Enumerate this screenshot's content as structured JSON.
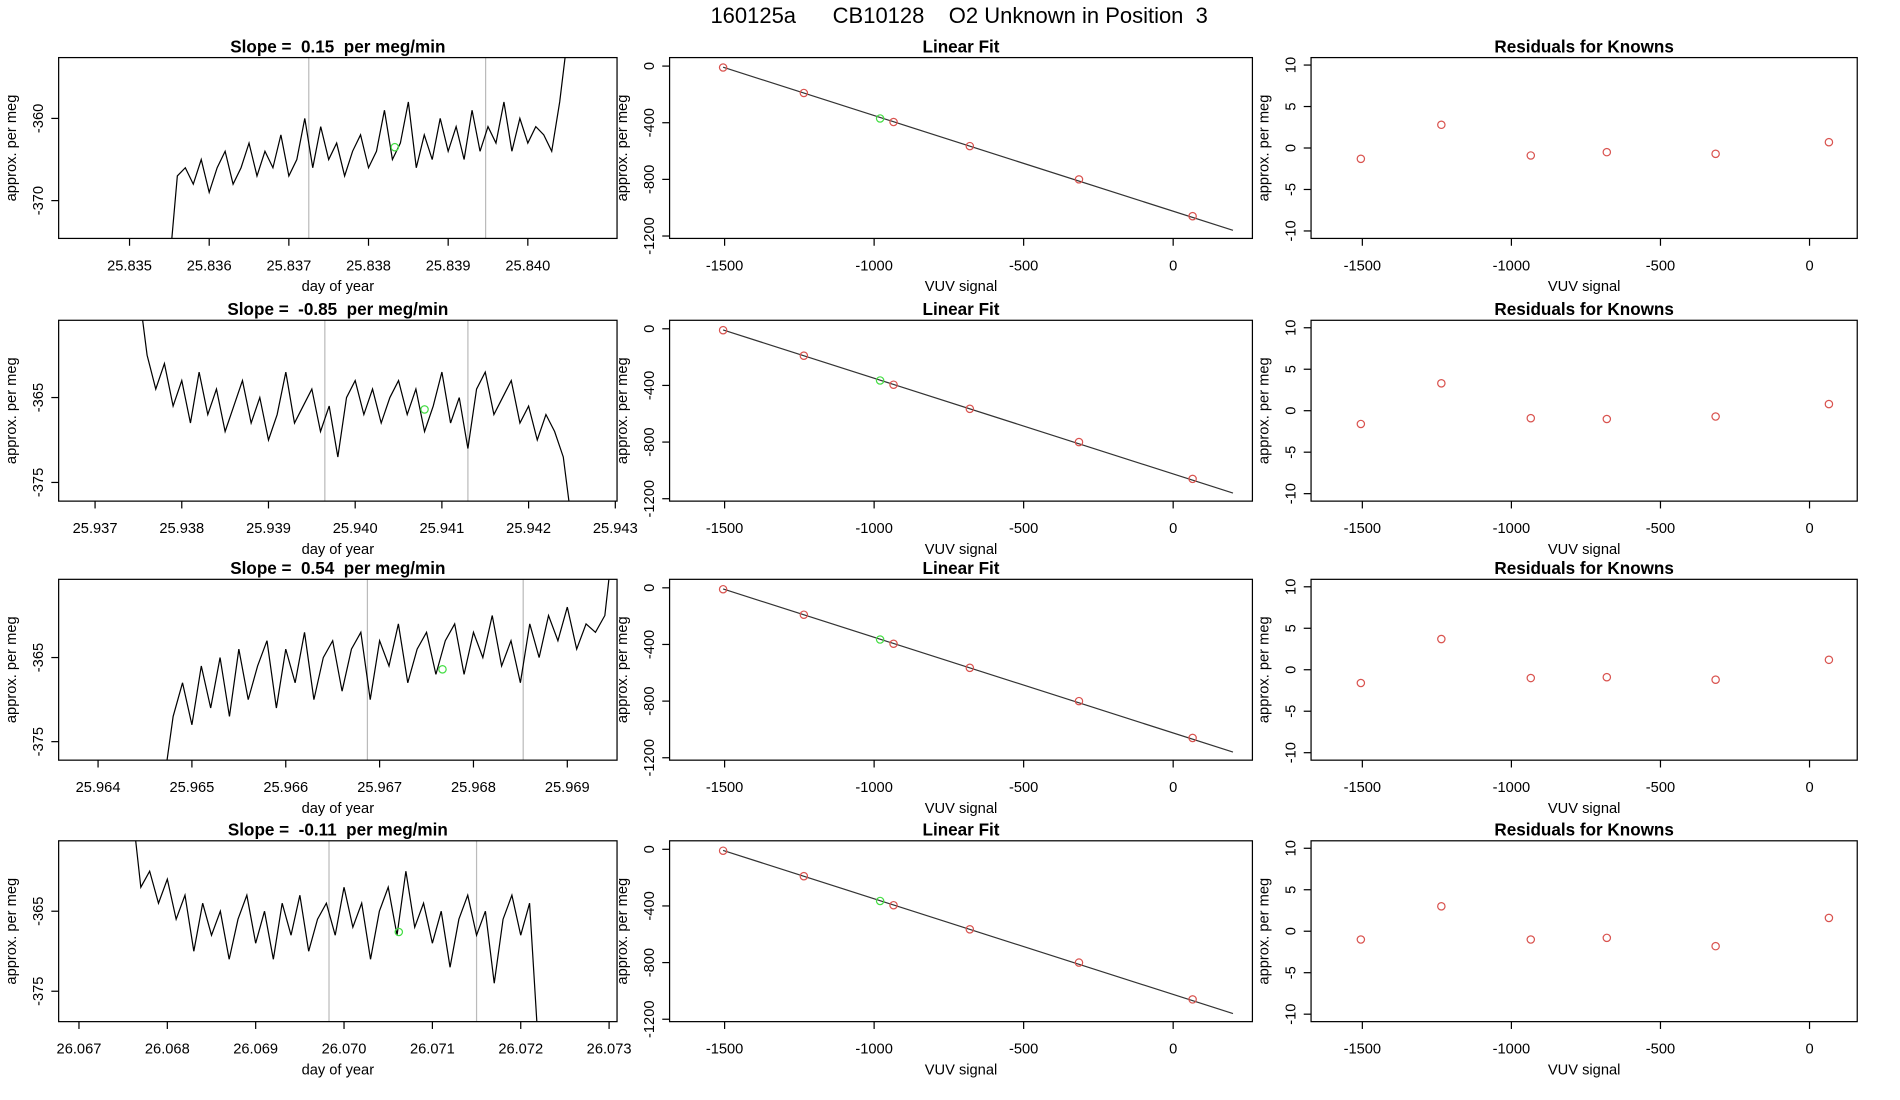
{
  "title": "160125a      CB10128    O2 Unknown in Position  3",
  "chart_data": [
    {
      "type": "line",
      "title": "Slope =  0.15  per meg/min",
      "xlabel": "day of year",
      "ylabel": "approx. per meg",
      "x": [
        25.8355,
        25.8356,
        25.8357,
        25.8358,
        25.8359,
        25.836,
        25.8361,
        25.8362,
        25.8363,
        25.8364,
        25.8365,
        25.8366,
        25.8367,
        25.8368,
        25.8369,
        25.837,
        25.8371,
        25.8372,
        25.8373,
        25.8374,
        25.8375,
        25.8376,
        25.8377,
        25.8378,
        25.8379,
        25.838,
        25.8381,
        25.8382,
        25.8383,
        25.8384,
        25.8385,
        25.8386,
        25.8387,
        25.8388,
        25.8389,
        25.839,
        25.8391,
        25.8392,
        25.8393,
        25.8394,
        25.8395,
        25.8396,
        25.8397,
        25.8398,
        25.8399,
        25.84,
        25.8401,
        25.8402,
        25.8403,
        25.8404,
        25.8405
      ],
      "values": [
        -378,
        -367,
        -366,
        -368,
        -365,
        -369,
        -366,
        -364,
        -368,
        -366,
        -363,
        -367,
        -364,
        -366,
        -362,
        -367,
        -365,
        -360,
        -366,
        -361,
        -365,
        -363,
        -367,
        -364,
        -362,
        -366,
        -364,
        -359,
        -365,
        -363,
        -358,
        -366,
        -362,
        -365,
        -360,
        -364,
        -361,
        -365,
        -359,
        -364,
        -361,
        -363,
        -358,
        -364,
        -360,
        -363,
        -361,
        -362,
        -364,
        -358,
        -350
      ],
      "color": "#000000",
      "vlines": [
        25.83725,
        25.83947
      ],
      "vline_color": "#bbbbbb",
      "highlight": {
        "x": 25.83833,
        "y": -363.5,
        "color": "#44dd44"
      },
      "xlim": [
        25.83411,
        25.84112
      ],
      "ylim": [
        -374.6,
        -352.6
      ],
      "xticks": [
        25.835,
        25.836,
        25.837,
        25.838,
        25.839,
        {
          "value": 25.84,
          "label": "25.840"
        }
      ],
      "yticks": [
        -360,
        -370
      ]
    },
    {
      "type": "scatter",
      "title": "Linear Fit",
      "xlabel": "VUV signal",
      "ylabel": "approx. per meg",
      "x": [
        -1505,
        -1235,
        -935,
        -680,
        -315,
        65
      ],
      "values": [
        -10,
        -190,
        -395,
        -565,
        -800,
        -1060
      ],
      "color": "#d9534f",
      "highlight": {
        "x": -980,
        "y": -370,
        "color": "#44dd44"
      },
      "fit": {
        "x": [
          -1505,
          200
        ],
        "y": [
          -8,
          -1160
        ]
      },
      "xlim": [
        -1684,
        265
      ],
      "ylim": [
        -1217,
        60
      ],
      "xticks": [
        -1500,
        -1000,
        -500,
        0
      ],
      "yticks": [
        0,
        -400,
        -800,
        -1200
      ]
    },
    {
      "type": "scatter",
      "title": "Residuals for Knowns",
      "xlabel": "VUV signal",
      "ylabel": "approx. per meg",
      "x": [
        -1505,
        -1235,
        -935,
        -680,
        -315,
        65
      ],
      "values": [
        -1.3,
        2.8,
        -0.9,
        -0.5,
        -0.7,
        0.7
      ],
      "color": "#d9534f",
      "xlim": [
        -1672,
        160
      ],
      "ylim": [
        -10.9,
        10.9
      ],
      "xticks": [
        -1500,
        -1000,
        -500,
        0
      ],
      "yticks": [
        -10,
        -5,
        0,
        5,
        10
      ]
    },
    {
      "type": "line",
      "title": "Slope =  -0.85  per meg/min",
      "xlabel": "day of year",
      "ylabel": "approx. per meg",
      "x": [
        25.9375,
        25.9376,
        25.9377,
        25.9378,
        25.9379,
        25.938,
        25.9381,
        25.9382,
        25.9383,
        25.9384,
        25.9385,
        25.9386,
        25.9387,
        25.9388,
        25.9389,
        25.939,
        25.9391,
        25.9392,
        25.9393,
        25.9394,
        25.9395,
        25.9396,
        25.9397,
        25.9398,
        25.9399,
        25.94,
        25.9401,
        25.9402,
        25.9403,
        25.9404,
        25.9405,
        25.9406,
        25.9407,
        25.9408,
        25.9409,
        25.941,
        25.9411,
        25.9412,
        25.9413,
        25.9414,
        25.9415,
        25.9416,
        25.9417,
        25.9418,
        25.9419,
        25.942,
        25.9421,
        25.9422,
        25.9423,
        25.9424,
        25.9425
      ],
      "values": [
        -352,
        -360,
        -364,
        -361,
        -366,
        -363,
        -368,
        -362,
        -367,
        -364,
        -369,
        -366,
        -363,
        -368,
        -365,
        -370,
        -367,
        -362,
        -368,
        -366,
        -364,
        -369,
        -366,
        -372,
        -365,
        -363,
        -367,
        -364,
        -368,
        -365,
        -363,
        -367,
        -364,
        -369,
        -366,
        -362,
        -368,
        -365,
        -371,
        -364,
        -362,
        -367,
        -365,
        -363,
        -368,
        -366,
        -370,
        -367,
        -369,
        -372,
        -380
      ],
      "color": "#000000",
      "vlines": [
        25.93965,
        25.9413
      ],
      "vline_color": "#bbbbbb",
      "highlight": {
        "x": 25.9408,
        "y": -366.4,
        "color": "#44dd44"
      },
      "xlim": [
        25.93658,
        25.94302
      ],
      "ylim": [
        -377.2,
        -355.9
      ],
      "xticks": [
        25.937,
        25.938,
        25.939,
        {
          "value": 25.94,
          "label": "25.940"
        },
        25.941,
        25.942,
        25.943
      ],
      "yticks": [
        -365,
        -375
      ]
    },
    {
      "type": "scatter",
      "title": "Linear Fit",
      "xlabel": "VUV signal",
      "ylabel": "approx. per meg",
      "x": [
        -1505,
        -1235,
        -935,
        -680,
        -315,
        65
      ],
      "values": [
        -10,
        -190,
        -395,
        -565,
        -800,
        -1060
      ],
      "color": "#d9534f",
      "highlight": {
        "x": -980,
        "y": -365,
        "color": "#44dd44"
      },
      "fit": {
        "x": [
          -1505,
          200
        ],
        "y": [
          -8,
          -1160
        ]
      },
      "xlim": [
        -1684,
        265
      ],
      "ylim": [
        -1217,
        60
      ],
      "xticks": [
        -1500,
        -1000,
        -500,
        0
      ],
      "yticks": [
        0,
        -400,
        -800,
        -1200
      ]
    },
    {
      "type": "scatter",
      "title": "Residuals for Knowns",
      "xlabel": "VUV signal",
      "ylabel": "approx. per meg",
      "x": [
        -1505,
        -1235,
        -935,
        -680,
        -315,
        65
      ],
      "values": [
        -1.6,
        3.3,
        -0.9,
        -1.0,
        -0.7,
        0.8
      ],
      "color": "#d9534f",
      "xlim": [
        -1672,
        160
      ],
      "ylim": [
        -10.9,
        10.9
      ],
      "xticks": [
        -1500,
        -1000,
        -500,
        0
      ],
      "yticks": [
        -10,
        -5,
        0,
        5,
        10
      ]
    },
    {
      "type": "line",
      "title": "Slope =  0.54  per meg/min",
      "xlabel": "day of year",
      "ylabel": "approx. per meg",
      "x": [
        25.9647,
        25.9648,
        25.9649,
        25.965,
        25.9651,
        25.9652,
        25.9653,
        25.9654,
        25.9655,
        25.9656,
        25.9657,
        25.9658,
        25.9659,
        25.966,
        25.9661,
        25.9662,
        25.9663,
        25.9664,
        25.9665,
        25.9666,
        25.9667,
        25.9668,
        25.9669,
        25.967,
        25.9671,
        25.9672,
        25.9673,
        25.9674,
        25.9675,
        25.9676,
        25.9677,
        25.9678,
        25.9679,
        25.968,
        25.9681,
        25.9682,
        25.9683,
        25.9684,
        25.9685,
        25.9686,
        25.9687,
        25.9688,
        25.9689,
        25.969,
        25.9691,
        25.9692,
        25.9693,
        25.9694,
        25.9695
      ],
      "values": [
        -380,
        -372,
        -368,
        -373,
        -366,
        -371,
        -365,
        -372,
        -364,
        -370,
        -366,
        -363,
        -371,
        -364,
        -368,
        -362,
        -370,
        -365,
        -363,
        -369,
        -364,
        -362,
        -370,
        -363,
        -366,
        -361,
        -368,
        -364,
        -362,
        -367,
        -363,
        -361,
        -367,
        -362,
        -365,
        -360,
        -366,
        -363,
        -368,
        -361,
        -365,
        -360,
        -363,
        -359,
        -364,
        -361,
        -362,
        -360,
        -350
      ],
      "color": "#000000",
      "vlines": [
        25.96687,
        25.96853
      ],
      "vline_color": "#bbbbbb",
      "highlight": {
        "x": 25.96767,
        "y": -366.4,
        "color": "#44dd44"
      },
      "xlim": [
        25.96358,
        25.96953
      ],
      "ylim": [
        -377.2,
        -355.7
      ],
      "xticks": [
        25.964,
        25.965,
        25.966,
        25.967,
        25.968,
        25.969
      ],
      "yticks": [
        -365,
        -375
      ]
    },
    {
      "type": "scatter",
      "title": "Linear Fit",
      "xlabel": "VUV signal",
      "ylabel": "approx. per meg",
      "x": [
        -1505,
        -1235,
        -935,
        -680,
        -315,
        65
      ],
      "values": [
        -10,
        -190,
        -395,
        -565,
        -800,
        -1060
      ],
      "color": "#d9534f",
      "highlight": {
        "x": -980,
        "y": -365,
        "color": "#44dd44"
      },
      "fit": {
        "x": [
          -1505,
          200
        ],
        "y": [
          -8,
          -1160
        ]
      },
      "xlim": [
        -1684,
        265
      ],
      "ylim": [
        -1217,
        60
      ],
      "xticks": [
        -1500,
        -1000,
        -500,
        0
      ],
      "yticks": [
        0,
        -400,
        -800,
        -1200
      ]
    },
    {
      "type": "scatter",
      "title": "Residuals for Knowns",
      "xlabel": "VUV signal",
      "ylabel": "approx. per meg",
      "x": [
        -1505,
        -1235,
        -935,
        -680,
        -315,
        65
      ],
      "values": [
        -1.6,
        3.7,
        -1.0,
        -0.9,
        -1.2,
        1.2
      ],
      "color": "#d9534f",
      "xlim": [
        -1672,
        160
      ],
      "ylim": [
        -10.9,
        10.9
      ],
      "xticks": [
        -1500,
        -1000,
        -500,
        0
      ],
      "yticks": [
        -10,
        -5,
        0,
        5,
        10
      ]
    },
    {
      "type": "line",
      "title": "Slope =  -0.11  per meg/min",
      "xlabel": "day of year",
      "ylabel": "approx. per meg",
      "x": [
        26.0676,
        26.0677,
        26.0678,
        26.0679,
        26.068,
        26.0681,
        26.0682,
        26.0683,
        26.0684,
        26.0685,
        26.0686,
        26.0687,
        26.0688,
        26.0689,
        26.069,
        26.0691,
        26.0692,
        26.0693,
        26.0694,
        26.0695,
        26.0696,
        26.0697,
        26.0698,
        26.0699,
        26.07,
        26.0701,
        26.0702,
        26.0703,
        26.0704,
        26.0705,
        26.0706,
        26.0707,
        26.0708,
        26.0709,
        26.071,
        26.0711,
        26.0712,
        26.0713,
        26.0714,
        26.0715,
        26.0716,
        26.0717,
        26.0718,
        26.0719,
        26.072,
        26.0721,
        26.0722
      ],
      "values": [
        -352,
        -362,
        -360,
        -364,
        -361,
        -366,
        -363,
        -370,
        -364,
        -368,
        -365,
        -371,
        -366,
        -363,
        -369,
        -365,
        -371,
        -364,
        -368,
        -363,
        -370,
        -366,
        -364,
        -368,
        -362,
        -367,
        -364,
        -371,
        -365,
        -362,
        -368,
        -360,
        -367,
        -364,
        -369,
        -365,
        -372,
        -366,
        -363,
        -368,
        -365,
        -374,
        -366,
        -363,
        -368,
        -364,
        -382
      ],
      "color": "#000000",
      "vlines": [
        26.06983,
        26.0715
      ],
      "vline_color": "#bbbbbb",
      "highlight": {
        "x": 26.07062,
        "y": -367.6,
        "color": "#44dd44"
      },
      "xlim": [
        26.06677,
        26.07309
      ],
      "ylim": [
        -378.8,
        -356.2
      ],
      "xticks": [
        26.067,
        26.068,
        26.069,
        {
          "value": 26.07,
          "label": "26.070"
        },
        26.071,
        26.072,
        26.073
      ],
      "yticks": [
        -365,
        -375
      ]
    },
    {
      "type": "scatter",
      "title": "Linear Fit",
      "xlabel": "VUV signal",
      "ylabel": "approx. per meg",
      "x": [
        -1505,
        -1235,
        -935,
        -680,
        -315,
        65
      ],
      "values": [
        -10,
        -190,
        -395,
        -565,
        -800,
        -1060
      ],
      "color": "#d9534f",
      "highlight": {
        "x": -980,
        "y": -365,
        "color": "#44dd44"
      },
      "fit": {
        "x": [
          -1505,
          200
        ],
        "y": [
          -8,
          -1160
        ]
      },
      "xlim": [
        -1684,
        265
      ],
      "ylim": [
        -1217,
        60
      ],
      "xticks": [
        -1500,
        -1000,
        -500,
        0
      ],
      "yticks": [
        0,
        -400,
        -800,
        -1200
      ]
    },
    {
      "type": "scatter",
      "title": "Residuals for Knowns",
      "xlabel": "VUV signal",
      "ylabel": "approx. per meg",
      "x": [
        -1505,
        -1235,
        -935,
        -680,
        -315,
        65
      ],
      "values": [
        -1.0,
        3.0,
        -1.0,
        -0.8,
        -1.8,
        1.6
      ],
      "color": "#d9534f",
      "xlim": [
        -1672,
        160
      ],
      "ylim": [
        -10.9,
        10.9
      ],
      "xticks": [
        -1500,
        -1000,
        -500,
        0
      ],
      "yticks": [
        -10,
        -5,
        0,
        5,
        10
      ]
    }
  ]
}
